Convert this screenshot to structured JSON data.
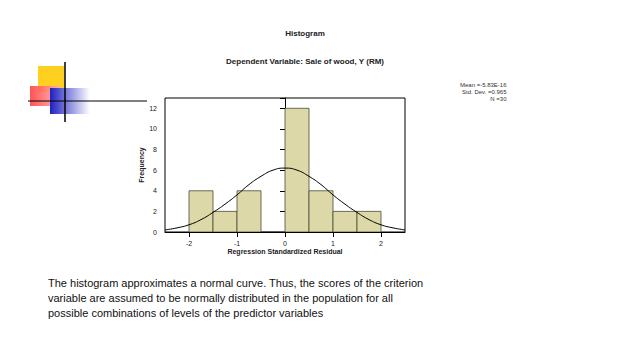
{
  "chart_data": {
    "type": "histogram",
    "title": "Histogram",
    "subtitle": "Dependent Variable: Sale of wood, Y (RM)",
    "x_label": "Regression Standardized Residual",
    "y_label": "Frequency",
    "bins": [
      -2,
      -1.5,
      -1,
      -0.5,
      0,
      0.5,
      1,
      1.5,
      2
    ],
    "values": [
      4,
      2,
      4,
      0,
      12,
      4,
      2,
      2
    ],
    "color": "#ddd8a8",
    "xlim": [
      -2.5,
      2.5
    ],
    "xticks": [
      -2,
      -1,
      0,
      1,
      2
    ],
    "ylim": [
      0,
      13
    ],
    "yticks": [
      0,
      2,
      4,
      6,
      8,
      10,
      12
    ],
    "grid": false,
    "curve": {
      "x": [
        -2.5,
        -2.25,
        -2,
        -1.75,
        -1.5,
        -1.25,
        -1,
        -0.75,
        -0.5,
        -0.25,
        0,
        0.25,
        0.5,
        0.75,
        1,
        1.25,
        1.5,
        1.75,
        2,
        2.25,
        2.5
      ],
      "values": [
        0.2,
        0.4,
        0.7,
        1.2,
        1.9,
        2.7,
        3.6,
        4.6,
        5.4,
        6.0,
        6.2,
        6.0,
        5.4,
        4.6,
        3.6,
        2.7,
        1.9,
        1.2,
        0.7,
        0.4,
        0.2
      ],
      "color": "#000000"
    },
    "annotations": [
      "Mean =-5.83E-16",
      "Std. Dev. =0.965",
      "N =30"
    ]
  },
  "caption": [
    "The histogram approximates a normal curve. Thus, the scores of the criterion",
    "variable are assumed to be normally distributed in the population for all",
    "possible combinations of levels of the predictor variables"
  ]
}
